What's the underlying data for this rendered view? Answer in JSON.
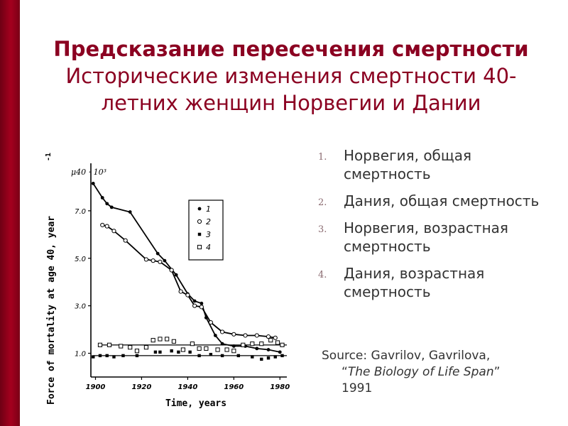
{
  "slide": {
    "title_bold": "Предсказание пересечения смертности",
    "title_rest": "Исторические изменения смертности 40-летних женщин Норвегии и Дании"
  },
  "legend_items": [
    {
      "num": "1.",
      "text": "Норвегия, общая смертность"
    },
    {
      "num": "2.",
      "text": "Дания, общая смертность"
    },
    {
      "num": "3.",
      "text": "Норвегия, возрастная смертность"
    },
    {
      "num": "4.",
      "text": "Дания, возрастная смертность"
    }
  ],
  "source": {
    "prefix": "Source: Gavrilov, Gavrilova,",
    "open_quote": "“",
    "book": "The Biology of Life Span",
    "close_quote": "”",
    "year": "1991"
  },
  "chart_data": {
    "type": "line",
    "ylabel": "Force of mortality at age 40, year",
    "ylabel_sup": "-1",
    "xlabel": "Time, years",
    "unit_label": "μ40 · 10³",
    "x_ticks": [
      1900,
      1920,
      1940,
      1960,
      1980
    ],
    "y_ticks": [
      1.0,
      3.0,
      5.0,
      7.0
    ],
    "y_tick_labels": [
      "1.0",
      "3.0",
      "5.0",
      "7.0"
    ],
    "xlim": [
      1898,
      1983
    ],
    "ylim": [
      0.0,
      9.0
    ],
    "inset_legend": [
      {
        "marker": "filled-circle",
        "label": "1"
      },
      {
        "marker": "open-circle",
        "label": "2"
      },
      {
        "marker": "filled-square",
        "label": "3"
      },
      {
        "marker": "open-square",
        "label": "4"
      }
    ],
    "series": [
      {
        "marker": "filled-circle",
        "connected": true,
        "points": [
          [
            1899,
            8.15
          ],
          [
            1903,
            7.55
          ],
          [
            1905,
            7.3
          ],
          [
            1907,
            7.15
          ],
          [
            1915,
            6.95
          ],
          [
            1927,
            5.2
          ],
          [
            1930,
            4.9
          ],
          [
            1935,
            4.3
          ],
          [
            1940,
            3.5
          ],
          [
            1943,
            3.2
          ],
          [
            1946,
            3.1
          ],
          [
            1948,
            2.5
          ],
          [
            1952,
            1.75
          ],
          [
            1955,
            1.4
          ],
          [
            1960,
            1.3
          ],
          [
            1965,
            1.3
          ],
          [
            1970,
            1.2
          ],
          [
            1975,
            1.15
          ],
          [
            1980,
            1.05
          ]
        ]
      },
      {
        "marker": "open-circle",
        "connected": true,
        "points": [
          [
            1903,
            6.4
          ],
          [
            1905,
            6.35
          ],
          [
            1908,
            6.15
          ],
          [
            1913,
            5.75
          ],
          [
            1922,
            4.95
          ],
          [
            1925,
            4.9
          ],
          [
            1928,
            4.85
          ],
          [
            1933,
            4.5
          ],
          [
            1937,
            3.6
          ],
          [
            1940,
            3.45
          ],
          [
            1943,
            3.0
          ],
          [
            1946,
            2.95
          ],
          [
            1950,
            2.3
          ],
          [
            1955,
            1.9
          ],
          [
            1960,
            1.8
          ],
          [
            1965,
            1.75
          ],
          [
            1970,
            1.75
          ],
          [
            1975,
            1.7
          ],
          [
            1978,
            1.65
          ]
        ]
      },
      {
        "marker": "filled-square",
        "connected": false,
        "fit_line": [
          [
            1899,
            0.9
          ],
          [
            1983,
            0.9
          ]
        ],
        "points": [
          [
            1899,
            0.85
          ],
          [
            1902,
            0.9
          ],
          [
            1905,
            0.9
          ],
          [
            1908,
            0.85
          ],
          [
            1912,
            0.9
          ],
          [
            1918,
            0.9
          ],
          [
            1926,
            1.05
          ],
          [
            1928,
            1.05
          ],
          [
            1933,
            1.1
          ],
          [
            1936,
            1.05
          ],
          [
            1941,
            1.05
          ],
          [
            1945,
            0.9
          ],
          [
            1950,
            0.95
          ],
          [
            1955,
            0.9
          ],
          [
            1962,
            0.9
          ],
          [
            1968,
            0.85
          ],
          [
            1972,
            0.75
          ],
          [
            1975,
            0.8
          ],
          [
            1978,
            0.85
          ],
          [
            1981,
            0.9
          ]
        ]
      },
      {
        "marker": "open-square",
        "connected": false,
        "fit_line": [
          [
            1902,
            1.35
          ],
          [
            1983,
            1.35
          ]
        ],
        "points": [
          [
            1902,
            1.35
          ],
          [
            1906,
            1.35
          ],
          [
            1911,
            1.3
          ],
          [
            1915,
            1.25
          ],
          [
            1918,
            1.1
          ],
          [
            1922,
            1.25
          ],
          [
            1925,
            1.55
          ],
          [
            1928,
            1.6
          ],
          [
            1931,
            1.6
          ],
          [
            1934,
            1.5
          ],
          [
            1938,
            1.15
          ],
          [
            1942,
            1.4
          ],
          [
            1945,
            1.2
          ],
          [
            1948,
            1.2
          ],
          [
            1953,
            1.15
          ],
          [
            1957,
            1.15
          ],
          [
            1960,
            1.1
          ],
          [
            1964,
            1.35
          ],
          [
            1968,
            1.4
          ],
          [
            1972,
            1.4
          ],
          [
            1976,
            1.55
          ],
          [
            1979,
            1.45
          ],
          [
            1981,
            1.35
          ]
        ]
      }
    ]
  }
}
